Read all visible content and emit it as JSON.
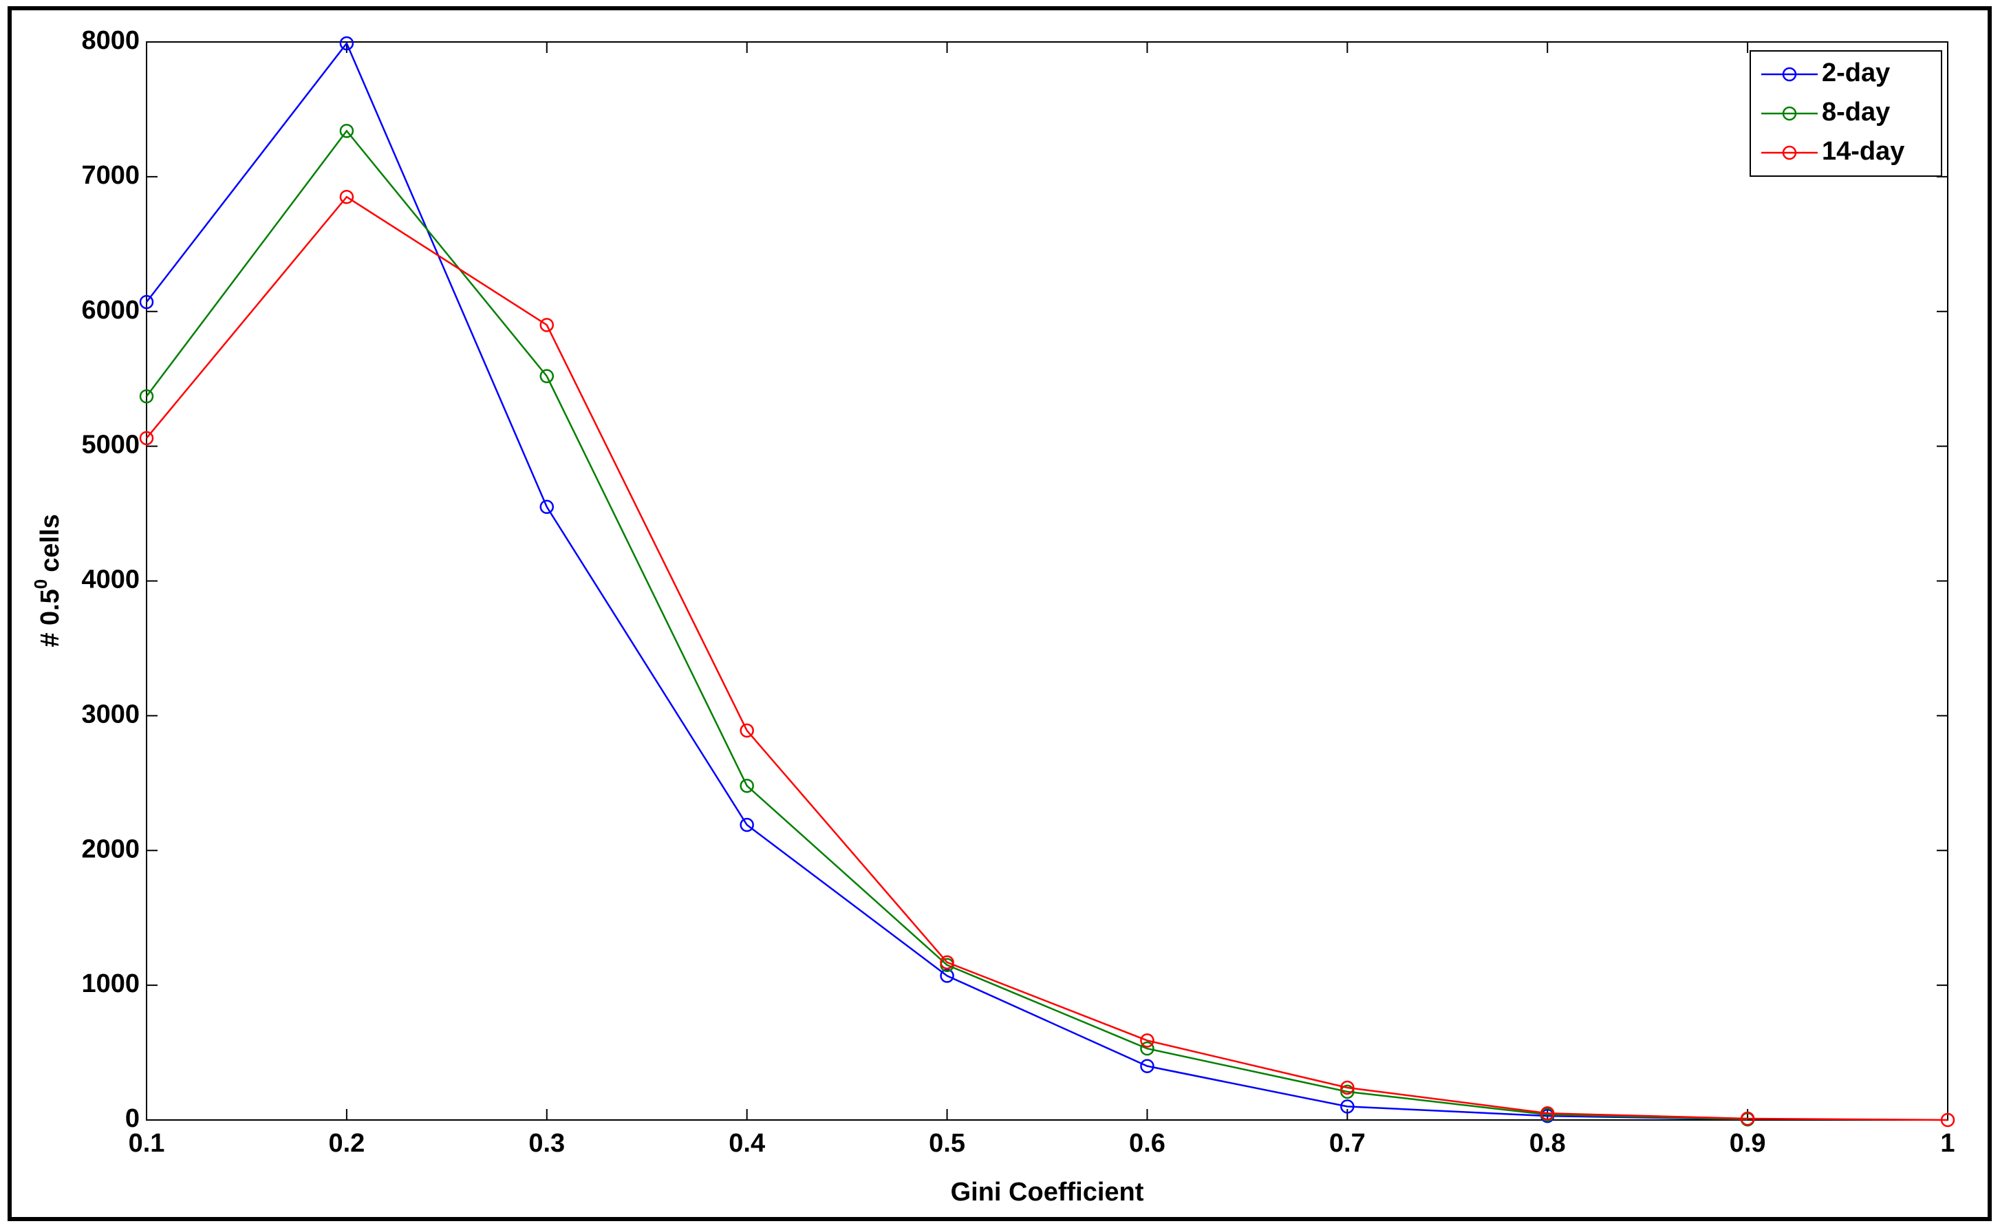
{
  "chart_data": {
    "type": "line",
    "x_label": "Gini Coefficient",
    "y_label": [
      "# 0.5",
      "0",
      "cells"
    ],
    "x": [
      0.1,
      0.2,
      0.3,
      0.4,
      0.5,
      0.6,
      0.7,
      0.8,
      0.9,
      1
    ],
    "series": [
      {
        "name": "2-day",
        "color": "#0000ff",
        "values": [
          6070,
          7990,
          4550,
          2190,
          1070,
          400,
          100,
          30,
          5,
          null
        ]
      },
      {
        "name": "8-day",
        "color": "#008000",
        "values": [
          5370,
          7340,
          5520,
          2480,
          1150,
          530,
          210,
          40,
          5,
          null
        ]
      },
      {
        "name": "14-day",
        "color": "#ff0000",
        "values": [
          5060,
          6850,
          5900,
          2890,
          1170,
          590,
          240,
          50,
          10,
          0
        ]
      }
    ],
    "xlim": [
      0.1,
      1
    ],
    "xticks": [
      0.1,
      0.2,
      0.3,
      0.4,
      0.5,
      0.6,
      0.7,
      0.8,
      0.9,
      1
    ],
    "ylim": [
      0,
      8000
    ],
    "yticks": [
      0,
      1000,
      2000,
      3000,
      4000,
      5000,
      6000,
      7000,
      8000
    ],
    "grid": false,
    "legend": "top-right"
  }
}
